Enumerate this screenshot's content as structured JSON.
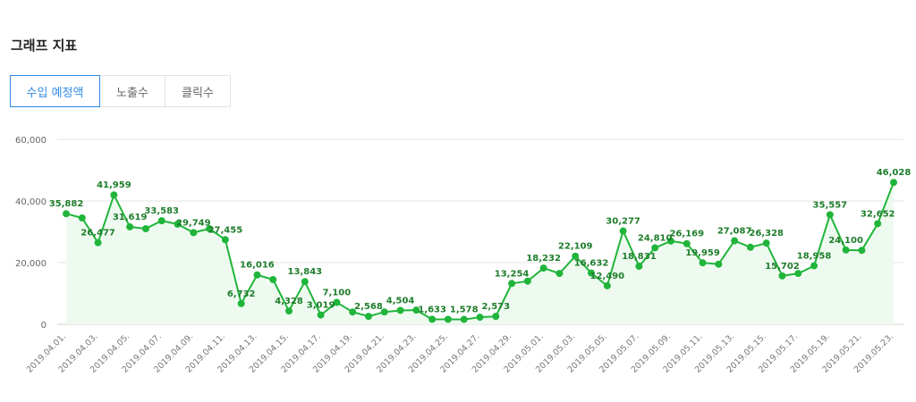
{
  "header": {
    "title": "그래프 지표"
  },
  "tabs": [
    {
      "label": "수입 예정액",
      "active": true
    },
    {
      "label": "노출수",
      "active": false
    },
    {
      "label": "클릭수",
      "active": false
    }
  ],
  "colors": {
    "line": "#20b53a",
    "fill": "#eefaf0",
    "grid": "#e6e6e6",
    "tab_active": "#2f8ae5"
  },
  "chart_data": {
    "type": "line",
    "x": [
      "2019.04.01.",
      "2019.04.02.",
      "2019.04.03.",
      "2019.04.04.",
      "2019.04.05.",
      "2019.04.06.",
      "2019.04.07.",
      "2019.04.08.",
      "2019.04.09.",
      "2019.04.10.",
      "2019.04.11.",
      "2019.04.12.",
      "2019.04.13.",
      "2019.04.14.",
      "2019.04.15.",
      "2019.04.16.",
      "2019.04.17.",
      "2019.04.18.",
      "2019.04.19.",
      "2019.04.20.",
      "2019.04.21.",
      "2019.04.22.",
      "2019.04.23.",
      "2019.04.24.",
      "2019.04.25.",
      "2019.04.26.",
      "2019.04.27.",
      "2019.04.28.",
      "2019.04.29.",
      "2019.04.30.",
      "2019.05.01.",
      "2019.05.02.",
      "2019.05.03.",
      "2019.05.04.",
      "2019.05.05.",
      "2019.05.06.",
      "2019.05.07.",
      "2019.05.08.",
      "2019.05.09.",
      "2019.05.10.",
      "2019.05.11.",
      "2019.05.12.",
      "2019.05.13.",
      "2019.05.14.",
      "2019.05.15.",
      "2019.05.16.",
      "2019.05.17.",
      "2019.05.18.",
      "2019.05.19.",
      "2019.05.20.",
      "2019.05.21.",
      "2019.05.22.",
      "2019.05.23."
    ],
    "values": [
      35882,
      34500,
      26477,
      41959,
      31619,
      31000,
      33583,
      32500,
      29749,
      31000,
      27455,
      6732,
      16016,
      14500,
      4328,
      13843,
      3019,
      7100,
      4000,
      2568,
      4000,
      4504,
      4600,
      1633,
      1600,
      1578,
      2300,
      2573,
      13254,
      14000,
      18232,
      16500,
      22109,
      16632,
      12490,
      30277,
      18831,
      24810,
      27000,
      26169,
      19959,
      19500,
      27087,
      25000,
      26328,
      15702,
      16500,
      18958,
      35557,
      24100,
      24000,
      32652,
      46028
    ],
    "data_labels": [
      {
        "i": 0,
        "text": "35,882"
      },
      {
        "i": 2,
        "text": "26,477"
      },
      {
        "i": 3,
        "text": "41,959"
      },
      {
        "i": 4,
        "text": "31,619"
      },
      {
        "i": 6,
        "text": "33,583"
      },
      {
        "i": 8,
        "text": "29,749"
      },
      {
        "i": 10,
        "text": "27,455"
      },
      {
        "i": 11,
        "text": "6,732"
      },
      {
        "i": 12,
        "text": "16,016"
      },
      {
        "i": 14,
        "text": "4,328"
      },
      {
        "i": 15,
        "text": "13,843"
      },
      {
        "i": 16,
        "text": "3,019"
      },
      {
        "i": 17,
        "text": "7,100"
      },
      {
        "i": 19,
        "text": "2,568"
      },
      {
        "i": 21,
        "text": "4,504"
      },
      {
        "i": 23,
        "text": "1,633"
      },
      {
        "i": 25,
        "text": "1,578"
      },
      {
        "i": 27,
        "text": "2,573"
      },
      {
        "i": 28,
        "text": "13,254"
      },
      {
        "i": 30,
        "text": "18,232"
      },
      {
        "i": 32,
        "text": "22,109"
      },
      {
        "i": 33,
        "text": "16,632"
      },
      {
        "i": 34,
        "text": "12,490"
      },
      {
        "i": 35,
        "text": "30,277"
      },
      {
        "i": 36,
        "text": "18,831"
      },
      {
        "i": 37,
        "text": "24,810"
      },
      {
        "i": 39,
        "text": "26,169"
      },
      {
        "i": 40,
        "text": "19,959"
      },
      {
        "i": 42,
        "text": "27,087"
      },
      {
        "i": 44,
        "text": "26,328"
      },
      {
        "i": 45,
        "text": "15,702"
      },
      {
        "i": 47,
        "text": "18,958"
      },
      {
        "i": 48,
        "text": "35,557"
      },
      {
        "i": 49,
        "text": "24,100"
      },
      {
        "i": 51,
        "text": "32,652"
      },
      {
        "i": 52,
        "text": "46,028"
      }
    ],
    "x_tick_labels": [
      "2019.04.01.",
      "2019.04.03.",
      "2019.04.05.",
      "2019.04.07.",
      "2019.04.09.",
      "2019.04.11.",
      "2019.04.13.",
      "2019.04.15.",
      "2019.04.17.",
      "2019.04.19.",
      "2019.04.21.",
      "2019.04.23.",
      "2019.04.25.",
      "2019.04.27.",
      "2019.04.29.",
      "2019.05.01.",
      "2019.05.03.",
      "2019.05.05.",
      "2019.05.07.",
      "2019.05.09.",
      "2019.05.11.",
      "2019.05.13.",
      "2019.05.15.",
      "2019.05.17.",
      "2019.05.19.",
      "2019.05.21.",
      "2019.05.23."
    ],
    "y_ticks": [
      0,
      20000,
      40000,
      60000
    ],
    "y_tick_labels": [
      "0",
      "20,000",
      "40,000",
      "60,000"
    ],
    "ylim": [
      0,
      60000
    ],
    "grid": true,
    "title": "",
    "xlabel": "",
    "ylabel": ""
  }
}
